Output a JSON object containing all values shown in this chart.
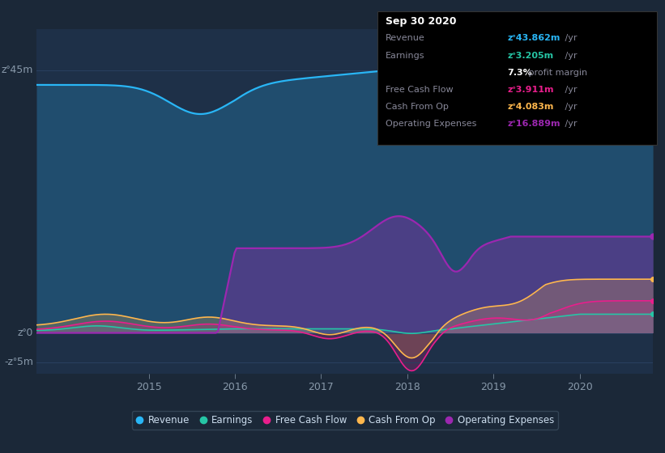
{
  "bg_color": "#1b2838",
  "plot_bg_color": "#1e3048",
  "grid_color": "#2a4060",
  "colors": {
    "revenue": "#29b6f6",
    "earnings": "#26c6a6",
    "free_cash_flow": "#e91e8c",
    "cash_from_op": "#ffb74d",
    "operating_expenses": "#9c27b0"
  },
  "x_ticks": [
    2015,
    2016,
    2017,
    2018,
    2019,
    2020
  ],
  "x_min": 2013.7,
  "x_max": 2020.85,
  "y_min": -7,
  "y_max": 52,
  "y_zero": 0,
  "y_top": 45,
  "y_neg": -5,
  "legend_labels": [
    "Revenue",
    "Earnings",
    "Free Cash Flow",
    "Cash From Op",
    "Operating Expenses"
  ],
  "tooltip": {
    "date": "Sep 30 2020",
    "rows": [
      {
        "label": "Revenue",
        "val": "zᐤ43.862m",
        "suffix": " /yr",
        "color": "#29b6f6"
      },
      {
        "label": "Earnings",
        "val": "zᐤ3.205m",
        "suffix": " /yr",
        "color": "#26c6a6"
      },
      {
        "label": null,
        "val": "7.3%",
        "suffix": " profit margin",
        "color": "white"
      },
      {
        "label": "Free Cash Flow",
        "val": "zᐤ3.911m",
        "suffix": " /yr",
        "color": "#e91e8c"
      },
      {
        "label": "Cash From Op",
        "val": "zᐤ4.083m",
        "suffix": " /yr",
        "color": "#ffb74d"
      },
      {
        "label": "Operating Expenses",
        "val": "zᐤ16.889m",
        "suffix": " /yr",
        "color": "#9c27b0"
      }
    ]
  }
}
